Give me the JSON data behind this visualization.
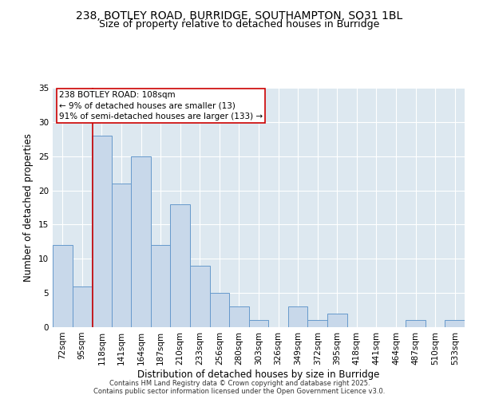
{
  "title1": "238, BOTLEY ROAD, BURRIDGE, SOUTHAMPTON, SO31 1BL",
  "title2": "Size of property relative to detached houses in Burridge",
  "xlabel": "Distribution of detached houses by size in Burridge",
  "ylabel": "Number of detached properties",
  "categories": [
    "72sqm",
    "95sqm",
    "118sqm",
    "141sqm",
    "164sqm",
    "187sqm",
    "210sqm",
    "233sqm",
    "256sqm",
    "280sqm",
    "303sqm",
    "326sqm",
    "349sqm",
    "372sqm",
    "395sqm",
    "418sqm",
    "441sqm",
    "464sqm",
    "487sqm",
    "510sqm",
    "533sqm"
  ],
  "values": [
    12,
    6,
    28,
    21,
    25,
    12,
    18,
    9,
    5,
    3,
    1,
    0,
    3,
    1,
    2,
    0,
    0,
    0,
    1,
    0,
    1
  ],
  "bar_color": "#c8d8ea",
  "bar_edge_color": "#6699cc",
  "bar_width": 1.0,
  "ylim": [
    0,
    35
  ],
  "yticks": [
    0,
    5,
    10,
    15,
    20,
    25,
    30,
    35
  ],
  "red_line_x": 1.54,
  "red_line_color": "#cc0000",
  "annotation_text": "238 BOTLEY ROAD: 108sqm\n← 9% of detached houses are smaller (13)\n91% of semi-detached houses are larger (133) →",
  "annotation_box_color": "#ffffff",
  "annotation_box_edge": "#cc0000",
  "bg_color": "#dde8f0",
  "title_fontsize": 10,
  "subtitle_fontsize": 9,
  "axis_label_fontsize": 8.5,
  "tick_fontsize": 7.5,
  "ann_fontsize": 7.5,
  "footer1": "Contains HM Land Registry data © Crown copyright and database right 2025.",
  "footer2": "Contains public sector information licensed under the Open Government Licence v3.0."
}
